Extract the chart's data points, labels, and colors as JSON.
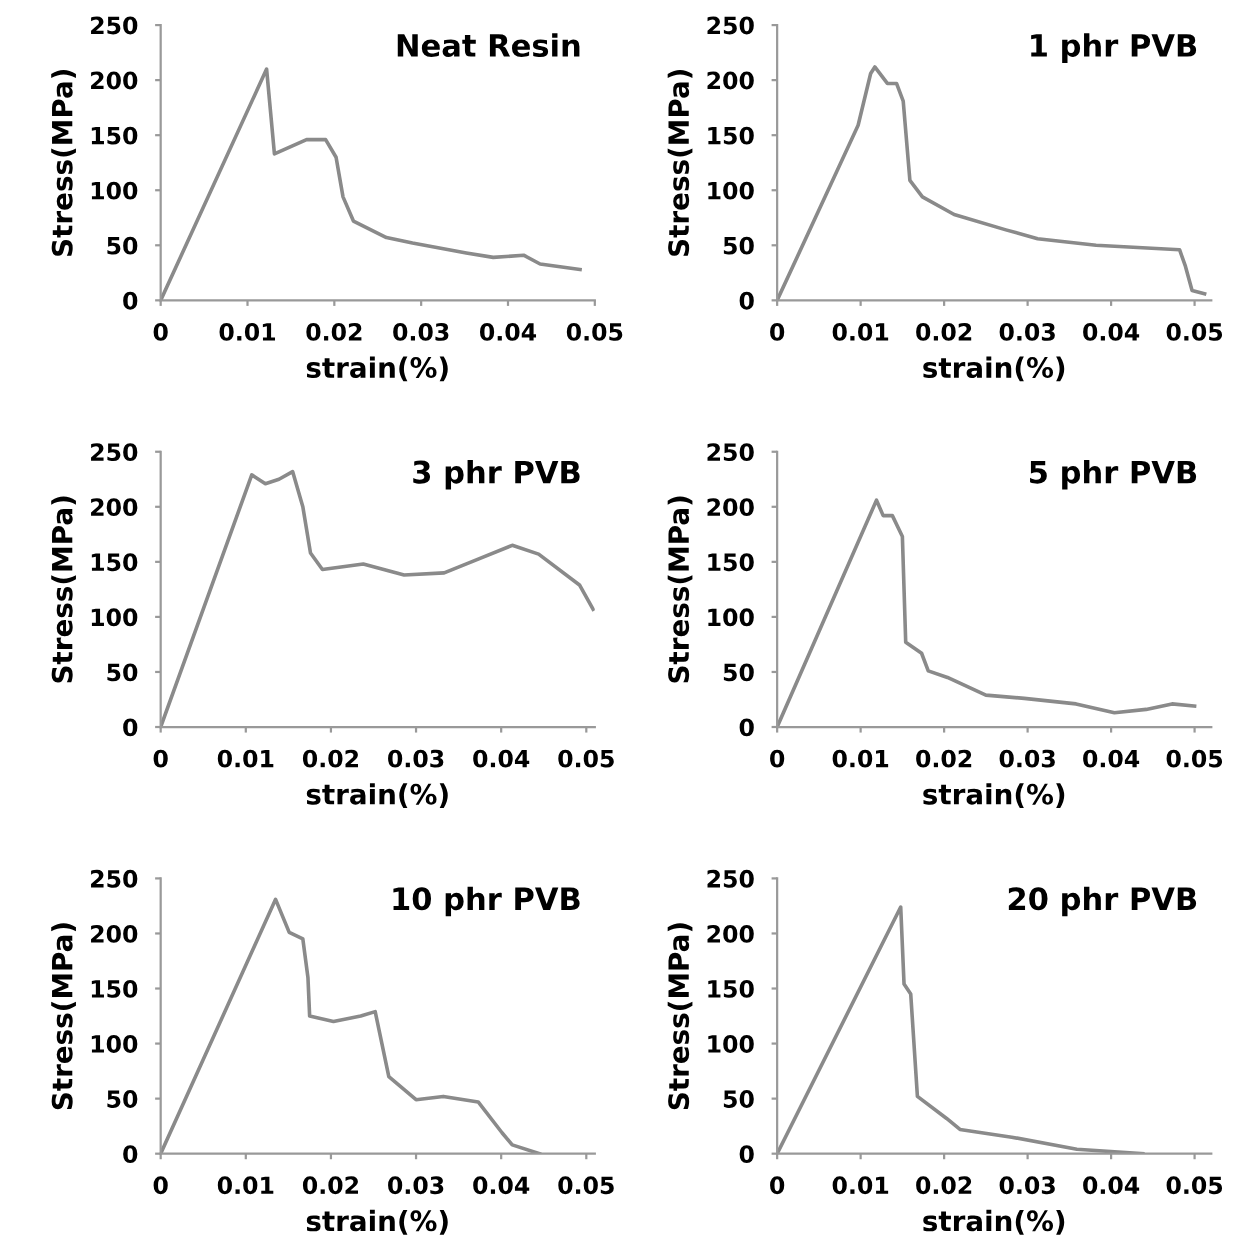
{
  "chart_data": [
    {
      "type": "line",
      "title": "Neat Resin",
      "xlabel": "strain(%)",
      "ylabel": "Stress(MPa)",
      "color": "#8a8a8a",
      "xlim": [
        0,
        0.05
      ],
      "ylim": [
        0,
        250
      ],
      "xticks": [
        0,
        0.01,
        0.02,
        0.03,
        0.04,
        0.05
      ],
      "yticks": [
        0,
        50,
        100,
        150,
        200,
        250
      ],
      "grid": false,
      "legend": false,
      "x": [
        0,
        0.0122,
        0.0131,
        0.0168,
        0.019,
        0.0202,
        0.021,
        0.0222,
        0.026,
        0.029,
        0.0352,
        0.0383,
        0.0418,
        0.0437,
        0.0483
      ],
      "values": [
        0,
        210,
        133,
        146,
        146,
        130,
        94,
        72,
        57,
        52,
        43,
        39,
        41,
        33,
        28
      ]
    },
    {
      "type": "line",
      "title": "1 phr PVB",
      "xlabel": "strain(%)",
      "ylabel": "Stress(MPa)",
      "color": "#8a8a8a",
      "xlim": [
        0,
        0.052
      ],
      "ylim": [
        0,
        250
      ],
      "xticks": [
        0,
        0.01,
        0.02,
        0.03,
        0.04,
        0.05
      ],
      "yticks": [
        0,
        50,
        100,
        150,
        200,
        250
      ],
      "grid": false,
      "legend": false,
      "x": [
        0,
        0.0097,
        0.0112,
        0.0117,
        0.0132,
        0.0143,
        0.0151,
        0.0159,
        0.0174,
        0.0212,
        0.0274,
        0.0312,
        0.0382,
        0.0482,
        0.0489,
        0.0497,
        0.0512
      ],
      "values": [
        0,
        159,
        206,
        212,
        197,
        197,
        181,
        109,
        94,
        78,
        64,
        56,
        50,
        46,
        31,
        9,
        6
      ]
    },
    {
      "type": "line",
      "title": "3 phr PVB",
      "xlabel": "strain(%)",
      "ylabel": "Stress(MPa)",
      "color": "#8a8a8a",
      "xlim": [
        0,
        0.051
      ],
      "ylim": [
        0,
        250
      ],
      "xticks": [
        0,
        0.01,
        0.02,
        0.03,
        0.04,
        0.05
      ],
      "yticks": [
        0,
        50,
        100,
        150,
        200,
        250
      ],
      "grid": false,
      "legend": false,
      "x": [
        0,
        0.0107,
        0.0123,
        0.0139,
        0.0155,
        0.0167,
        0.0176,
        0.019,
        0.0238,
        0.0286,
        0.0333,
        0.0365,
        0.0413,
        0.0444,
        0.0492,
        0.0508
      ],
      "values": [
        0,
        229,
        221,
        225,
        232,
        200,
        158,
        143,
        148,
        138,
        140,
        150,
        165,
        157,
        129,
        107
      ]
    },
    {
      "type": "line",
      "title": "5 phr PVB",
      "xlabel": "strain(%)",
      "ylabel": "Stress(MPa)",
      "color": "#8a8a8a",
      "xlim": [
        0,
        0.052
      ],
      "ylim": [
        0,
        250
      ],
      "xticks": [
        0,
        0.01,
        0.02,
        0.03,
        0.04,
        0.05
      ],
      "yticks": [
        0,
        50,
        100,
        150,
        200,
        250
      ],
      "grid": false,
      "legend": false,
      "x": [
        0,
        0.0119,
        0.0127,
        0.0138,
        0.015,
        0.0154,
        0.0173,
        0.0181,
        0.0204,
        0.025,
        0.0296,
        0.0358,
        0.0404,
        0.0442,
        0.0473,
        0.05
      ],
      "values": [
        0,
        206,
        192,
        192,
        173,
        77,
        67,
        51,
        45,
        29,
        26,
        21,
        13,
        16,
        21,
        19
      ]
    },
    {
      "type": "line",
      "title": "10 phr PVB",
      "xlabel": "strain(%)",
      "ylabel": "Stress(MPa)",
      "color": "#8a8a8a",
      "xlim": [
        0,
        0.051
      ],
      "ylim": [
        0,
        250
      ],
      "xticks": [
        0,
        0.01,
        0.02,
        0.03,
        0.04,
        0.05
      ],
      "yticks": [
        0,
        50,
        100,
        150,
        200,
        250
      ],
      "grid": false,
      "legend": false,
      "x": [
        0,
        0.0135,
        0.0151,
        0.0167,
        0.0173,
        0.0175,
        0.0203,
        0.0235,
        0.0252,
        0.0268,
        0.03,
        0.0332,
        0.0373,
        0.0401,
        0.0413,
        0.0445
      ],
      "values": [
        0,
        231,
        201,
        195,
        160,
        125,
        120,
        125,
        129,
        70,
        49,
        52,
        47,
        19,
        8,
        0
      ]
    },
    {
      "type": "line",
      "title": "20 phr PVB",
      "xlabel": "strain(%)",
      "ylabel": "Stress(MPa)",
      "color": "#8a8a8a",
      "xlim": [
        0,
        0.052
      ],
      "ylim": [
        0,
        250
      ],
      "xticks": [
        0,
        0.01,
        0.02,
        0.03,
        0.04,
        0.05
      ],
      "yticks": [
        0,
        50,
        100,
        150,
        200,
        250
      ],
      "grid": false,
      "legend": false,
      "x": [
        0,
        0.0148,
        0.0152,
        0.016,
        0.0168,
        0.0203,
        0.0219,
        0.0281,
        0.0359,
        0.0438
      ],
      "values": [
        0,
        224,
        154,
        145,
        52,
        32,
        22,
        15,
        4,
        0
      ]
    }
  ]
}
